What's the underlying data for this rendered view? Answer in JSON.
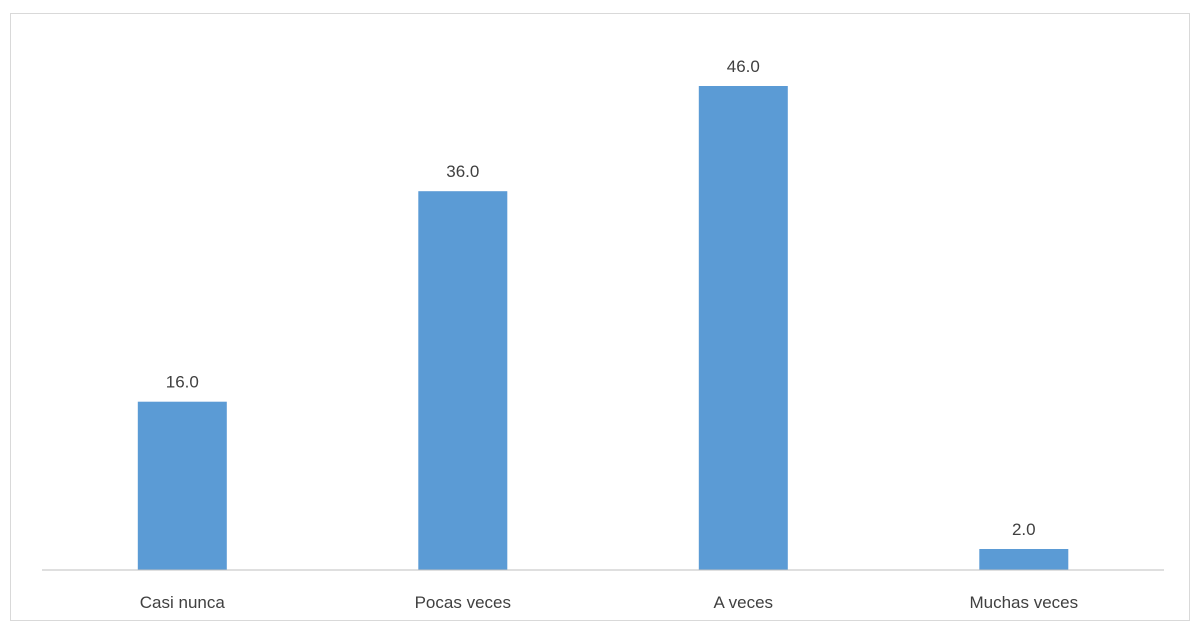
{
  "chart_data": {
    "type": "bar",
    "categories": [
      "Casi nunca",
      "Pocas veces",
      "A veces",
      "Muchas veces"
    ],
    "values": [
      16.0,
      36.0,
      46.0,
      2.0
    ],
    "data_labels": [
      "16.0",
      "36.0",
      "46.0",
      "2.0"
    ],
    "title": "",
    "xlabel": "",
    "ylabel": "",
    "ylim": [
      0,
      46
    ],
    "grid": false,
    "legend": "none",
    "bar_color": "#5b9bd5",
    "axis_color": "#bfbfbf",
    "text_color": "#404040"
  }
}
